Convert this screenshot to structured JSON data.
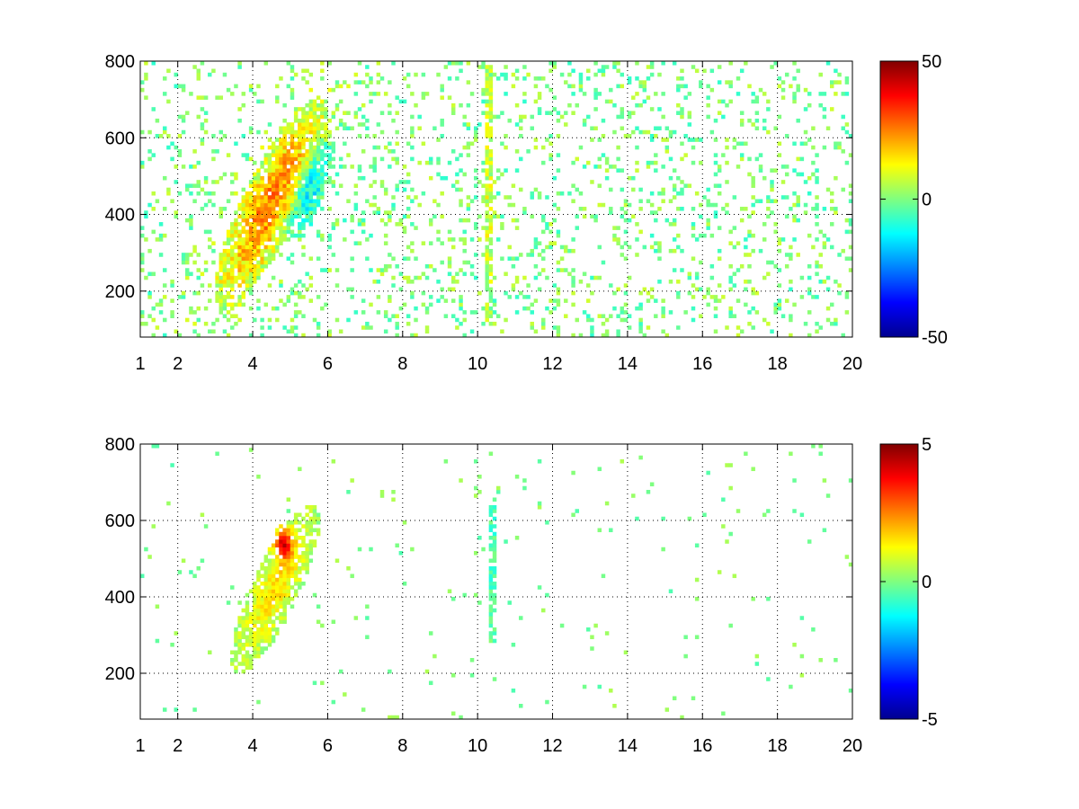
{
  "chart_data": [
    {
      "type": "heatmap",
      "title": "",
      "xlabel": "",
      "ylabel": "",
      "xlim": [
        1,
        20
      ],
      "ylim": [
        80,
        800
      ],
      "x_ticks": [
        1,
        2,
        4,
        6,
        8,
        10,
        12,
        14,
        16,
        18,
        20
      ],
      "y_ticks": [
        200,
        400,
        600,
        800
      ],
      "grid": true,
      "colormap": "jet",
      "colorbar": {
        "range": [
          -50,
          50
        ],
        "ticks": [
          50,
          0,
          -50
        ]
      },
      "features": [
        {
          "x_center": 4.5,
          "y_center": 430,
          "x_width": 2.6,
          "y_spread": 130,
          "slope": 150,
          "value": 25
        },
        {
          "x_center": 5.5,
          "y_center": 470,
          "x_width": 1.2,
          "y_spread": 80,
          "slope": 150,
          "value": -18
        },
        {
          "x_center": 10.3,
          "y_center": 450,
          "x_width": 0.15,
          "y_spread": 350,
          "slope": 0,
          "value": 12
        }
      ],
      "noise": {
        "amplitude": 8,
        "density": "sparse"
      }
    },
    {
      "type": "heatmap",
      "title": "",
      "xlabel": "",
      "ylabel": "",
      "xlim": [
        1,
        20
      ],
      "ylim": [
        80,
        800
      ],
      "x_ticks": [
        1,
        2,
        4,
        6,
        8,
        10,
        12,
        14,
        16,
        18,
        20
      ],
      "y_ticks": [
        200,
        400,
        600,
        800
      ],
      "grid": true,
      "colormap": "jet",
      "colorbar": {
        "range": [
          -5,
          5
        ],
        "ticks": [
          5,
          0,
          -5
        ]
      },
      "features": [
        {
          "x_center": 4.6,
          "y_center": 420,
          "x_width": 2.0,
          "y_spread": 110,
          "slope": 150,
          "value": 1.5
        },
        {
          "x_center": 4.8,
          "y_center": 540,
          "x_width": 0.5,
          "y_spread": 40,
          "slope": 0,
          "value": 3.5
        },
        {
          "x_center": 10.4,
          "y_center": 470,
          "x_width": 0.1,
          "y_spread": 300,
          "slope": 0,
          "value": -1.5
        }
      ],
      "noise": {
        "amplitude": 0.5,
        "density": "very sparse"
      }
    }
  ]
}
